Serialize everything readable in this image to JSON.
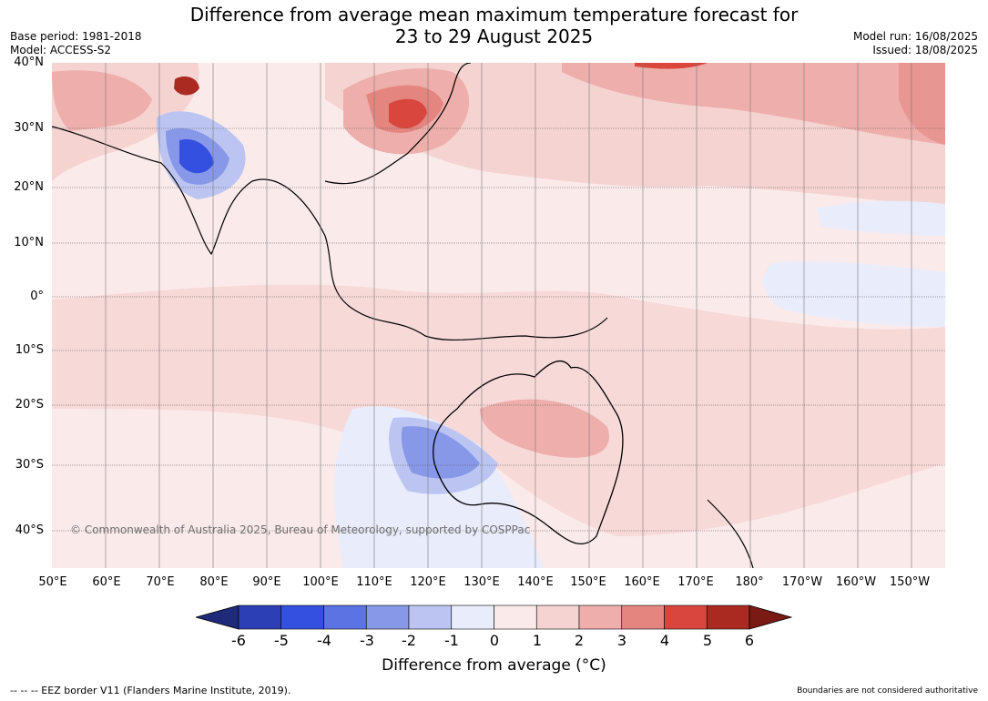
{
  "title_line1": "Difference from average mean maximum temperature forecast for",
  "title_line2": "23 to 29 August 2025",
  "base_period": "Base period: 1981-2018",
  "model": "Model: ACCESS-S2",
  "model_run": "Model run: 16/08/2025",
  "issued": "Issued: 18/08/2025",
  "lat_labels": [
    "40°N",
    "30°N",
    "20°N",
    "10°N",
    "0°",
    "10°S",
    "20°S",
    "30°S",
    "40°S"
  ],
  "lon_labels": [
    "50°E",
    "60°E",
    "70°E",
    "80°E",
    "90°E",
    "100°E",
    "110°E",
    "120°E",
    "130°E",
    "140°E",
    "150°E",
    "160°E",
    "170°E",
    "180°",
    "170°W",
    "160°W",
    "150°W"
  ],
  "copyright": "© Commonwealth of Australia 2025, Bureau of Meteorology, supported by COSPPac",
  "colorbar": {
    "ticks": [
      "-6",
      "-5",
      "-4",
      "-3",
      "-2",
      "-1",
      "0",
      "1",
      "2",
      "3",
      "4",
      "5",
      "6"
    ],
    "colors": [
      "#1f2a78",
      "#2d3fb5",
      "#3350e0",
      "#5b73e3",
      "#8898e8",
      "#bcc5f2",
      "#e9ecfb",
      "#fbeaea",
      "#f5d3d1",
      "#eeaeab",
      "#e58580",
      "#d9463d",
      "#aa2a22",
      "#7a1a15"
    ],
    "title": "Difference from average (°C)"
  },
  "eez_note": "--  --  -- EEZ border V11 (Flanders Marine Institute, 2019).",
  "boundaries_note": "Boundaries are not considered authoritative"
}
